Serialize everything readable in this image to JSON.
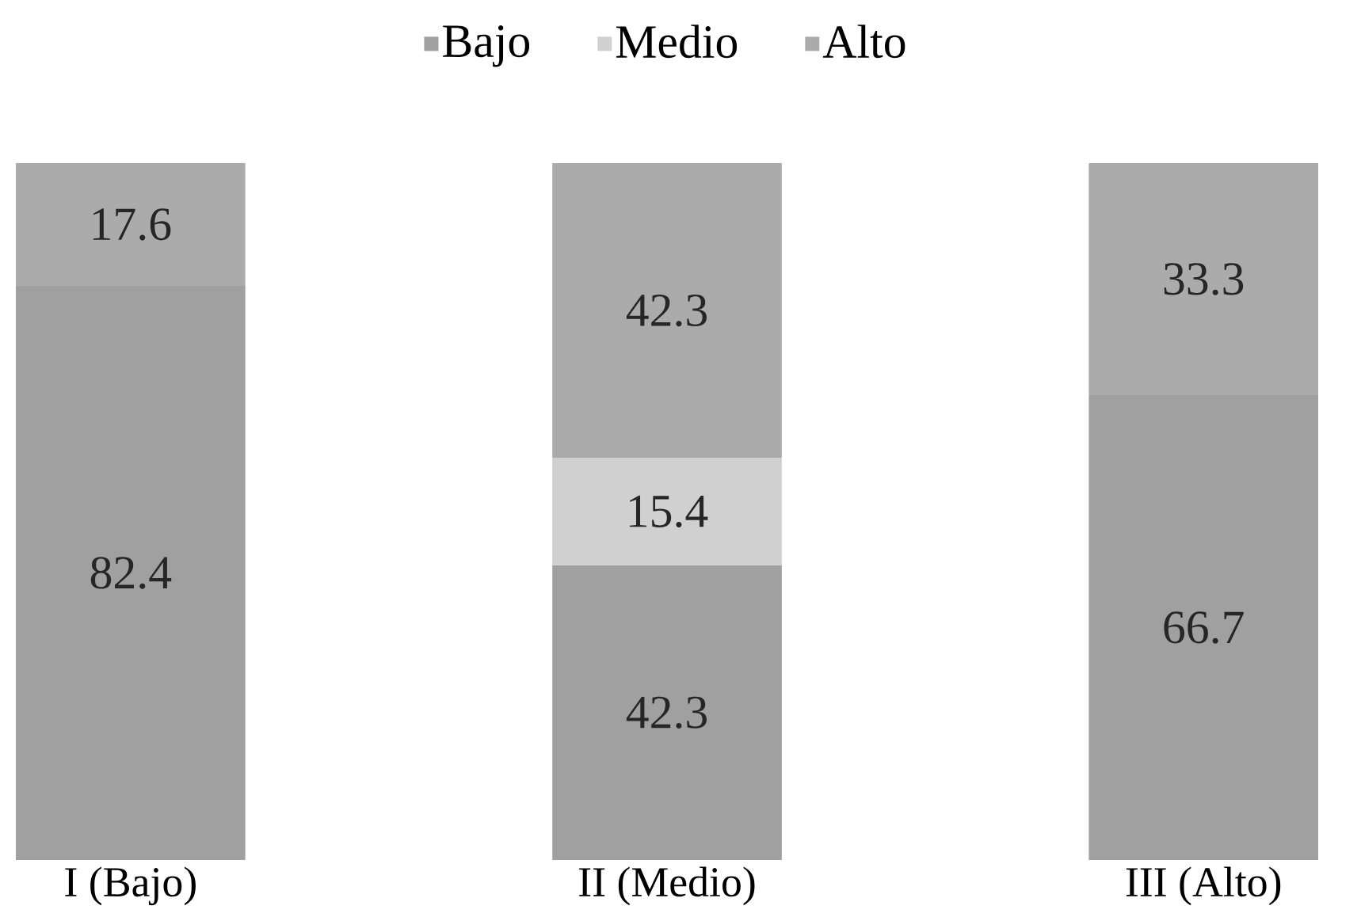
{
  "chart_data": {
    "type": "bar",
    "stacked": true,
    "categories": [
      "I (Bajo)",
      "II (Medio)",
      "III (Alto)"
    ],
    "series": [
      {
        "name": "Bajo",
        "color": "#a0a0a0",
        "values": [
          82.4,
          42.3,
          66.7
        ]
      },
      {
        "name": "Medio",
        "color": "#d0d0d0",
        "values": [
          null,
          15.4,
          null
        ]
      },
      {
        "name": "Alto",
        "color": "#ababab",
        "values": [
          17.6,
          42.3,
          33.3
        ]
      }
    ],
    "ylim": [
      0,
      100
    ],
    "data_labels": true,
    "legend": "top",
    "tick_labels": "x"
  }
}
